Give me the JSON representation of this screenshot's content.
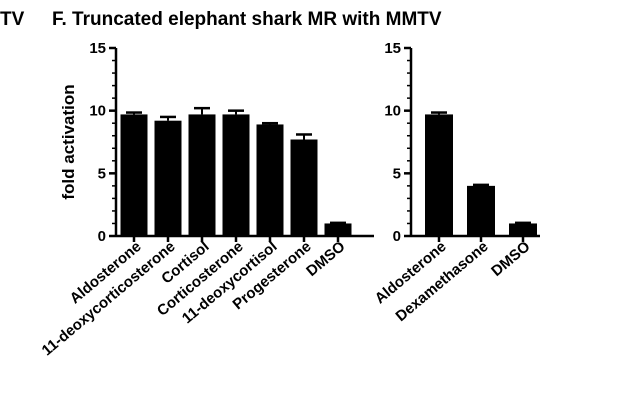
{
  "figure": {
    "left_fragment": "TV",
    "title": "F. Truncated elephant shark MR with MMTV"
  },
  "chart_data": [
    {
      "type": "bar",
      "ylabel": "fold activation",
      "ylim": [
        0,
        15
      ],
      "yticks": [
        0,
        5,
        10,
        15
      ],
      "grid": false,
      "categories": [
        "Aldosterone",
        "11-deoxycorticosterone",
        "Cortisol",
        "Corticosterone",
        "11-deoxycortisol",
        "Progesterone",
        "DMSO"
      ],
      "values": [
        9.7,
        9.2,
        9.7,
        9.7,
        8.9,
        7.7,
        1.0
      ],
      "errors": [
        0.15,
        0.3,
        0.5,
        0.3,
        0.1,
        0.4,
        0.05
      ],
      "bar_color": "#000000"
    },
    {
      "type": "bar",
      "ylabel": "",
      "ylim": [
        0,
        15
      ],
      "yticks": [
        0,
        5,
        10,
        15
      ],
      "grid": false,
      "categories": [
        "Aldosterone",
        "Dexamethasone",
        "DMSO"
      ],
      "values": [
        9.7,
        4.0,
        1.0
      ],
      "errors": [
        0.15,
        0.08,
        0.05
      ],
      "bar_color": "#000000"
    }
  ]
}
